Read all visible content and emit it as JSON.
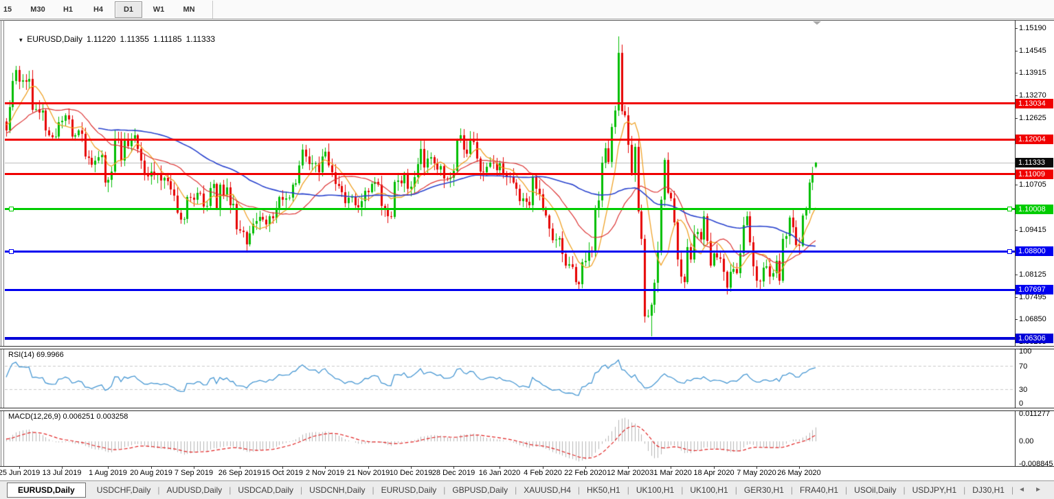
{
  "toolbar": {
    "timeframes": [
      "15",
      "M30",
      "H1",
      "H4",
      "D1",
      "W1",
      "MN"
    ],
    "active": "D1"
  },
  "icons": {
    "dropdown": "▼",
    "scroll_left": "◄",
    "scroll_right": "►"
  },
  "header": {
    "symbol": "EURUSD,Daily",
    "open": "1.11220",
    "high": "1.11355",
    "low": "1.11185",
    "close": "1.11333"
  },
  "price_axis": {
    "ticks": [
      "1.15190",
      "1.14545",
      "1.13915",
      "1.13270",
      "1.12625",
      "1.10705",
      "1.09415",
      "1.08125",
      "1.07495",
      "1.06850",
      "1.06205"
    ]
  },
  "chart_data": {
    "type": "candlestick",
    "symbol": "EURUSD",
    "timeframe": "Daily",
    "axis": {
      "price_top": 1.1535,
      "price_bottom": 1.0609
    },
    "colors": {
      "bull": "#00bd00",
      "bear": "#e60000",
      "ma_fast": "#efa125",
      "ma_mid": "#dc3232",
      "ma_slow": "#2741cd",
      "rsi": "#4596d2",
      "rsi_grid": "#c8c8c8",
      "macd_hist": "#b4b4b4",
      "macd_signal": "#e02020",
      "current_line": "#bdbdbd"
    },
    "moving_averages": [
      {
        "period": 8,
        "color": "#efa125",
        "width": 1.3
      },
      {
        "period": 21,
        "color": "#dc3232",
        "width": 1.2
      },
      {
        "period": 55,
        "color": "#2741cd",
        "width": 1.6
      }
    ],
    "pre_closes": [
      1.121,
      1.1185,
      1.1175,
      1.1162,
      1.1158,
      1.117,
      1.1182,
      1.12,
      1.1216,
      1.1224,
      1.1218,
      1.1206,
      1.1195,
      1.1184,
      1.1178,
      1.119,
      1.1203,
      1.1215,
      1.123,
      1.1244,
      1.1257,
      1.125,
      1.1238,
      1.1229,
      1.124,
      1.1252,
      1.1227,
      1.1294,
      1.1368,
      1.14
    ],
    "closes": [
      1.1366,
      1.137,
      1.1365,
      1.1373,
      1.1285,
      1.1288,
      1.1278,
      1.1283,
      1.1227,
      1.1213,
      1.1207,
      1.1209,
      1.125,
      1.1253,
      1.127,
      1.1258,
      1.1209,
      1.1213,
      1.1226,
      1.1217,
      1.1152,
      1.1148,
      1.1128,
      1.1139,
      1.1149,
      1.1155,
      1.1077,
      1.1085,
      1.1108,
      1.1202,
      1.12,
      1.114,
      1.12,
      1.1181,
      1.1202,
      1.1212,
      1.1173,
      1.114,
      1.1098,
      1.1095,
      1.1108,
      1.1098,
      1.11,
      1.1082,
      1.109,
      1.108,
      1.1058,
      1.104,
      1.0991,
      1.097,
      1.0972,
      1.1035,
      1.1034,
      1.1028,
      1.1047,
      1.1045,
      1.1009,
      1.101,
      1.1062,
      1.1073,
      1.1003,
      1.1071,
      1.1042,
      1.1064,
      1.1013,
      1.1016,
      1.0944,
      1.094,
      1.0935,
      1.0899,
      1.0932,
      1.0959,
      1.0966,
      1.0979,
      1.0971,
      1.0957,
      1.0981,
      1.0974,
      1.1004,
      1.1035,
      1.1028,
      1.1032,
      1.1034,
      1.1071,
      1.1075,
      1.1126,
      1.1172,
      1.1151,
      1.113,
      1.1131,
      1.1132,
      1.1107,
      1.1152,
      1.1165,
      1.1127,
      1.1107,
      1.1073,
      1.1068,
      1.105,
      1.1018,
      1.1033,
      1.1035,
      1.1012,
      1.1007,
      1.1023,
      1.1053,
      1.105,
      1.1073,
      1.1078,
      1.1072,
      1.101,
      1.1001,
      1.0981,
      1.0978,
      1.1078,
      1.1082,
      1.1075,
      1.1104,
      1.106,
      1.1065,
      1.1093,
      1.113,
      1.1174,
      1.112,
      1.1145,
      1.1149,
      1.1132,
      1.1115,
      1.1124,
      1.1088,
      1.1087,
      1.109,
      1.111,
      1.1198,
      1.1212,
      1.1172,
      1.116,
      1.1197,
      1.1193,
      1.1145,
      1.1109,
      1.1107,
      1.1122,
      1.1134,
      1.1132,
      1.1113,
      1.1131,
      1.1103,
      1.1095,
      1.1094,
      1.1077,
      1.1059,
      1.1023,
      1.1031,
      1.1022,
      1.1013,
      1.1094,
      1.106,
      1.1043,
      1.1,
      1.0983,
      1.0946,
      1.0911,
      1.0913,
      1.0917,
      1.0873,
      1.084,
      1.0842,
      1.0836,
      1.0791,
      1.0785,
      1.0848,
      1.0853,
      1.0882,
      1.0881,
      1.1002,
      1.1026,
      1.1134,
      1.1175,
      1.1136,
      1.1236,
      1.1284,
      1.1448,
      1.1281,
      1.127,
      1.1185,
      1.1105,
      1.118,
      1.0995,
      1.0915,
      1.0693,
      1.0695,
      1.0727,
      1.0789,
      1.0881,
      1.1028,
      1.1141,
      1.1048,
      1.1031,
      1.0963,
      1.0856,
      1.0808,
      1.0791,
      1.0892,
      1.0856,
      1.093,
      1.0935,
      1.0914,
      1.098,
      1.091,
      1.0839,
      1.0875,
      1.0862,
      1.0858,
      1.0822,
      1.0777,
      1.0821,
      1.0829,
      1.0818,
      1.0875,
      1.0955,
      1.098,
      1.0905,
      1.0837,
      1.0795,
      1.0794,
      1.0833,
      1.0838,
      1.0808,
      1.0817,
      1.0852,
      1.0796,
      1.0916,
      1.0924,
      1.0976,
      1.0949,
      1.0898,
      1.0897,
      1.0983,
      1.1002,
      1.1076,
      1.1101,
      1.1133
    ],
    "overrides": {
      "0": {
        "h": 1.1412
      },
      "182": {
        "h": 1.1495
      },
      "190": {
        "l": 1.0675
      },
      "192": {
        "l": 1.0636
      },
      "196": {
        "h": 1.1148
      },
      "242": {
        "o": 1.1122,
        "h": 1.11355,
        "l": 1.11185,
        "c": 1.11333
      }
    },
    "hlines": [
      {
        "price": 1.13034,
        "label": "1.13034",
        "color": "#f00000",
        "thickness": 3,
        "handles": false
      },
      {
        "price": 1.12004,
        "label": "1.12004",
        "color": "#f00000",
        "thickness": 3,
        "handles": false
      },
      {
        "price": 1.11009,
        "label": "1.11009",
        "color": "#f00000",
        "thickness": 3,
        "handles": false
      },
      {
        "price": 1.10008,
        "label": "1.10008",
        "color": "#00cc00",
        "thickness": 3,
        "handles": true
      },
      {
        "price": 1.088,
        "label": "1.08800",
        "color": "#0000f0",
        "thickness": 3,
        "handles": true
      },
      {
        "price": 1.07697,
        "label": "1.07697",
        "color": "#0000f0",
        "thickness": 3,
        "handles": false
      },
      {
        "price": 1.06306,
        "label": "1.06306",
        "color": "#0000d8",
        "thickness": 4,
        "handles": false
      }
    ],
    "current_price": {
      "value": 1.11333,
      "label": "1.11333",
      "label_bg": "#0a0a0a"
    },
    "date_labels": [
      {
        "label": "25 Jun 2019",
        "index": 0
      },
      {
        "label": "13 Jul 2019",
        "index": 13
      },
      {
        "label": "1 Aug 2019",
        "index": 27
      },
      {
        "label": "20 Aug 2019",
        "index": 40
      },
      {
        "label": "7 Sep 2019",
        "index": 53
      },
      {
        "label": "26 Sep 2019",
        "index": 67
      },
      {
        "label": "15 Oct 2019",
        "index": 80
      },
      {
        "label": "2 Nov 2019",
        "index": 93
      },
      {
        "label": "21 Nov 2019",
        "index": 106
      },
      {
        "label": "10 Dec 2019",
        "index": 119
      },
      {
        "label": "28 Dec 2019",
        "index": 132
      },
      {
        "label": "16 Jan 2020",
        "index": 146
      },
      {
        "label": "4 Feb 2020",
        "index": 159
      },
      {
        "label": "22 Feb 2020",
        "index": 172
      },
      {
        "label": "12 Mar 2020",
        "index": 185
      },
      {
        "label": "31 Mar 2020",
        "index": 198
      },
      {
        "label": "18 Apr 2020",
        "index": 211
      },
      {
        "label": "7 May 2020",
        "index": 224
      },
      {
        "label": "26 May 2020",
        "index": 237
      }
    ],
    "rsi": {
      "label": "RSI(14)",
      "value": "69.9966",
      "period": 14,
      "levels": [
        70,
        30
      ],
      "axis_ticks": [
        "100",
        "70",
        "30",
        "0"
      ]
    },
    "macd": {
      "label": "MACD(12,26,9)",
      "value_main": "0.006251",
      "value_signal": "0.003258",
      "fast": 12,
      "slow": 26,
      "signal": 9,
      "axis_ticks": [
        "0.011277",
        "0.00",
        "-0.008845"
      ],
      "range_max": 0.0118,
      "range_min": -0.0093
    }
  },
  "bottom_tabs": {
    "active": "EURUSD,Daily",
    "items": [
      "USDCHF,Daily",
      "AUDUSD,Daily",
      "USDCAD,Daily",
      "USDCNH,Daily",
      "EURUSD,Daily",
      "GBPUSD,Daily",
      "XAUUSD,H4",
      "HK50,H1",
      "UK100,H1",
      "UK100,H1",
      "GER30,H1",
      "FRA40,H1",
      "USOil,Daily",
      "USDJPY,H1",
      "DJ30,H1"
    ]
  }
}
